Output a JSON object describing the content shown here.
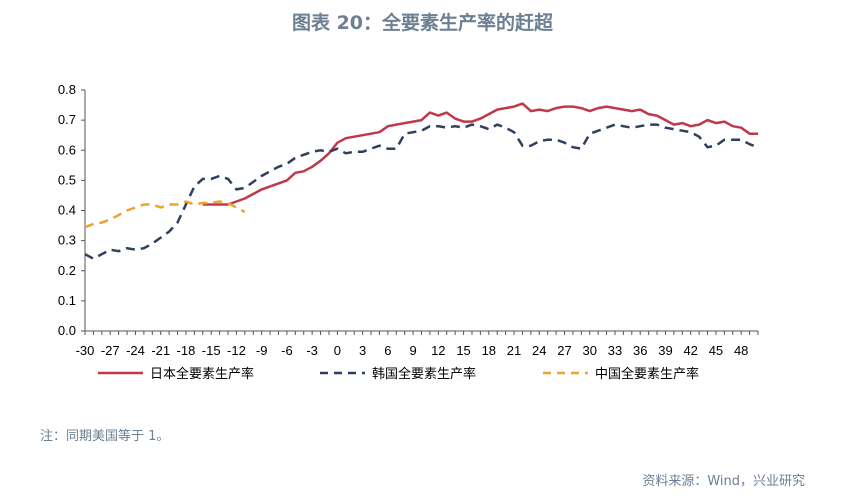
{
  "header": {
    "title": "图表 20：全要素生产率的赶超"
  },
  "footer": {
    "note": "注：同期美国等于 1。",
    "source": "资料来源：Wind，兴业研究"
  },
  "chart_data": {
    "type": "line",
    "title": "",
    "xlabel": "",
    "ylabel": "",
    "ylim": [
      0,
      0.8
    ],
    "yticks": [
      "0.0",
      "0.1",
      "0.2",
      "0.3",
      "0.4",
      "0.5",
      "0.6",
      "0.7",
      "0.8"
    ],
    "xlim": [
      -30,
      50
    ],
    "xticks": [
      "-30",
      "-27",
      "-24",
      "-21",
      "-18",
      "-15",
      "-12",
      "-9",
      "-6",
      "-3",
      "0",
      "3",
      "6",
      "9",
      "12",
      "15",
      "18",
      "21",
      "24",
      "27",
      "30",
      "33",
      "36",
      "39",
      "42",
      "45",
      "48"
    ],
    "legend": "bottom",
    "series": [
      {
        "name": "日本全要素生产率",
        "color": "#c0394b",
        "style": "solid",
        "x": [
          -16,
          -15,
          -14,
          -13,
          -12,
          -11,
          -10,
          -9,
          -8,
          -7,
          -6,
          -5,
          -4,
          -3,
          -2,
          -1,
          0,
          1,
          2,
          3,
          4,
          5,
          6,
          7,
          8,
          9,
          10,
          11,
          12,
          13,
          14,
          15,
          16,
          17,
          18,
          19,
          20,
          21,
          22,
          23,
          24,
          25,
          26,
          27,
          28,
          29,
          30,
          31,
          32,
          33,
          34,
          35,
          36,
          37,
          38,
          39,
          40,
          41,
          42,
          43,
          44,
          45,
          46,
          47,
          48,
          49,
          50
        ],
        "values": [
          0.42,
          0.42,
          0.42,
          0.42,
          0.43,
          0.44,
          0.455,
          0.47,
          0.48,
          0.49,
          0.5,
          0.525,
          0.53,
          0.545,
          0.565,
          0.59,
          0.625,
          0.64,
          0.645,
          0.65,
          0.655,
          0.66,
          0.68,
          0.685,
          0.69,
          0.695,
          0.7,
          0.725,
          0.715,
          0.725,
          0.705,
          0.695,
          0.695,
          0.705,
          0.72,
          0.735,
          0.74,
          0.745,
          0.755,
          0.73,
          0.735,
          0.73,
          0.74,
          0.745,
          0.745,
          0.74,
          0.73,
          0.74,
          0.745,
          0.74,
          0.735,
          0.73,
          0.735,
          0.72,
          0.715,
          0.7,
          0.685,
          0.69,
          0.68,
          0.685,
          0.7,
          0.69,
          0.695,
          0.68,
          0.675,
          0.655,
          0.655
        ]
      },
      {
        "name": "韩国全要素生产率",
        "color": "#2f3f5e",
        "style": "dashed",
        "x": [
          -30,
          -29,
          -28,
          -27,
          -26,
          -25,
          -24,
          -23,
          -22,
          -21,
          -20,
          -19,
          -18,
          -17,
          -16,
          -15,
          -14,
          -13,
          -12,
          -11,
          -10,
          -9,
          -8,
          -7,
          -6,
          -5,
          -4,
          -3,
          -2,
          -1,
          0,
          1,
          2,
          3,
          4,
          5,
          6,
          7,
          8,
          9,
          10,
          11,
          12,
          13,
          14,
          15,
          16,
          17,
          18,
          19,
          20,
          21,
          22,
          23,
          24,
          25,
          26,
          27,
          28,
          29,
          30,
          31,
          32,
          33,
          34,
          35,
          36,
          37,
          38,
          39,
          40,
          41,
          42,
          43,
          44,
          45,
          46,
          47,
          48,
          49,
          50
        ],
        "values": [
          0.255,
          0.24,
          0.255,
          0.27,
          0.265,
          0.275,
          0.27,
          0.275,
          0.29,
          0.31,
          0.33,
          0.36,
          0.42,
          0.48,
          0.505,
          0.505,
          0.515,
          0.505,
          0.47,
          0.475,
          0.495,
          0.515,
          0.53,
          0.545,
          0.555,
          0.575,
          0.585,
          0.595,
          0.6,
          0.595,
          0.605,
          0.59,
          0.595,
          0.595,
          0.605,
          0.615,
          0.605,
          0.605,
          0.655,
          0.66,
          0.665,
          0.68,
          0.68,
          0.675,
          0.68,
          0.675,
          0.685,
          0.68,
          0.67,
          0.685,
          0.675,
          0.66,
          0.615,
          0.615,
          0.63,
          0.635,
          0.635,
          0.625,
          0.61,
          0.605,
          0.655,
          0.665,
          0.675,
          0.685,
          0.68,
          0.675,
          0.68,
          0.685,
          0.685,
          0.675,
          0.67,
          0.665,
          0.66,
          0.645,
          0.61,
          0.615,
          0.635,
          0.635,
          0.635,
          0.62,
          0.61
        ]
      },
      {
        "name": "中国全要素生产率",
        "color": "#f0a22e",
        "style": "dashed",
        "x": [
          -30,
          -29,
          -28,
          -27,
          -26,
          -25,
          -24,
          -23,
          -22,
          -21,
          -20,
          -19,
          -18,
          -17,
          -16,
          -15,
          -14,
          -13,
          -12,
          -11
        ],
        "values": [
          0.345,
          0.355,
          0.36,
          0.37,
          0.385,
          0.4,
          0.41,
          0.42,
          0.42,
          0.41,
          0.42,
          0.42,
          0.43,
          0.42,
          0.425,
          0.425,
          0.43,
          0.425,
          0.41,
          0.395
        ]
      }
    ]
  }
}
